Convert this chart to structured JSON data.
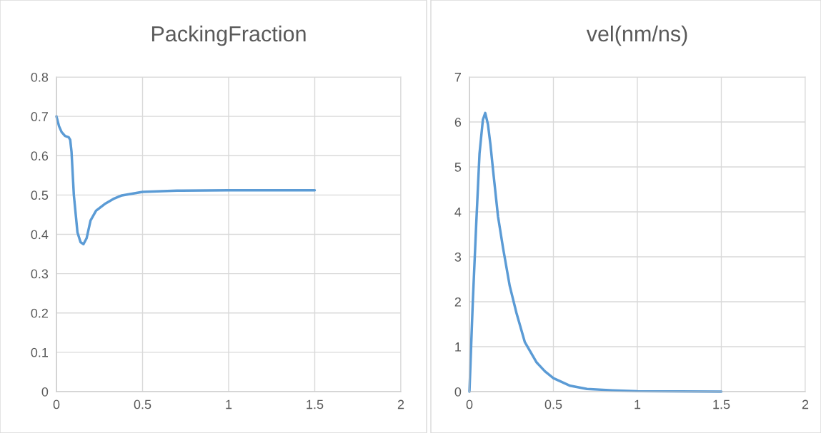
{
  "chart_data": [
    {
      "type": "line",
      "title": "PackingFraction",
      "xlim": [
        0,
        2
      ],
      "xticks": [
        0,
        0.5,
        1,
        1.5,
        2
      ],
      "ylim": [
        0,
        0.8
      ],
      "yticks": [
        0,
        0.1,
        0.2,
        0.3,
        0.4,
        0.5,
        0.6,
        0.7,
        0.8
      ],
      "grid": true,
      "series": [
        {
          "color": "#5b9bd5",
          "x": [
            0,
            0.015,
            0.03,
            0.05,
            0.071,
            0.08,
            0.0875,
            0.101,
            0.122,
            0.14,
            0.157,
            0.175,
            0.198,
            0.23,
            0.28,
            0.33,
            0.38,
            0.5,
            0.7,
            1,
            1.5
          ],
          "values": [
            0.7,
            0.675,
            0.66,
            0.65,
            0.647,
            0.64,
            0.61,
            0.5,
            0.405,
            0.38,
            0.375,
            0.39,
            0.435,
            0.46,
            0.477,
            0.49,
            0.499,
            0.508,
            0.511,
            0.512,
            0.512
          ]
        }
      ]
    },
    {
      "type": "line",
      "title": "vel(nm/ns)",
      "xlim": [
        0,
        2
      ],
      "xticks": [
        0,
        0.5,
        1,
        1.5,
        2
      ],
      "ylim": [
        0,
        7
      ],
      "yticks": [
        0,
        1,
        2,
        3,
        4,
        5,
        6,
        7
      ],
      "grid": true,
      "series": [
        {
          "color": "#5b9bd5",
          "x": [
            0,
            0.02,
            0.04,
            0.06,
            0.08,
            0.094,
            0.11,
            0.125,
            0.14,
            0.17,
            0.2,
            0.24,
            0.28,
            0.33,
            0.4,
            0.45,
            0.5,
            0.6,
            0.7,
            0.85,
            1,
            1.5
          ],
          "values": [
            0,
            2.0,
            3.7,
            5.3,
            6.05,
            6.2,
            5.95,
            5.5,
            4.95,
            3.9,
            3.2,
            2.35,
            1.75,
            1.1,
            0.65,
            0.45,
            0.3,
            0.13,
            0.06,
            0.03,
            0.01,
            0
          ]
        }
      ]
    }
  ]
}
